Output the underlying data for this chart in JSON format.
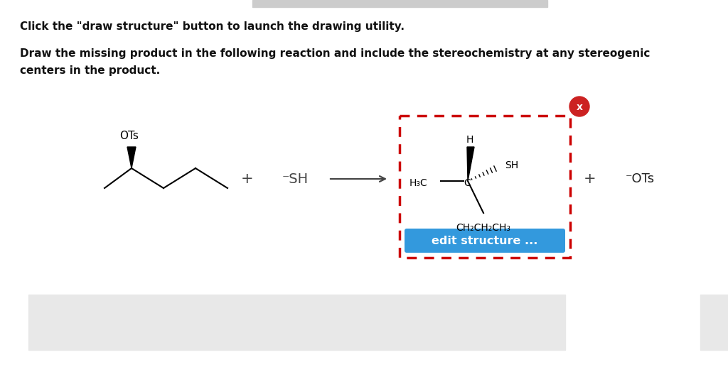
{
  "bg_color": "#ffffff",
  "title_line1": "Click the \"draw structure\" button to launch the drawing utility.",
  "title_line2": "Draw the missing product in the following reaction and include the stereochemistry at any stereogenic\ncenters in the product.",
  "reactant_OTs_label": "OTs",
  "reagent_label": "⁻SH",
  "plus_label": "+",
  "product_box_border": "#cc0000",
  "product_box_fill": "#ffffff",
  "edit_button_color": "#3399dd",
  "edit_button_text": "edit structure ...",
  "x_button_color": "#cc2222",
  "product_H_label": "H",
  "product_SH_label": "SH",
  "product_H3C_label": "H₃C",
  "product_C_label": "C",
  "product_chain_label": "CH₂CH₂CH₃",
  "plus2_label": "+",
  "OTs_neg_label": "⁻OTs",
  "bottom_box_color": "#e8e8e8",
  "top_bar_color": "#cccccc",
  "figsize": [
    10.24,
    5.17
  ],
  "dpi": 100
}
